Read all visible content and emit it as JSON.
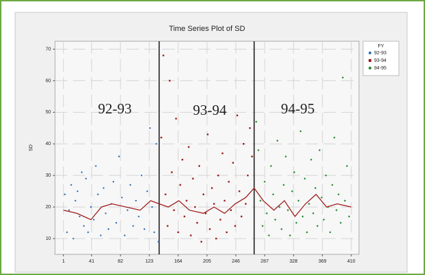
{
  "chart_data": {
    "type": "scatter",
    "title": "Time Series Plot of SD",
    "y_label": "SD",
    "xlim": [
      -11,
      421
    ],
    "ylim": [
      5,
      72.5
    ],
    "xticks": [
      1,
      41,
      82,
      123,
      164,
      205,
      246,
      287,
      328,
      369,
      410
    ],
    "yticks": [
      10,
      20,
      30,
      40,
      50,
      60,
      70
    ],
    "grid": true,
    "legend_title": "FY",
    "legend": "upper right",
    "annotations": [
      "92-93",
      "93-94",
      "94-95"
    ],
    "vlines": [
      137,
      272
    ],
    "series": [
      {
        "name": "92-93",
        "color": "#2f6fb5",
        "marker": "circle",
        "x": [
          3,
          6,
          9,
          12,
          15,
          18,
          21,
          24,
          27,
          30,
          33,
          36,
          40,
          44,
          47,
          50,
          54,
          58,
          61,
          65,
          69,
          72,
          76,
          80,
          84,
          88,
          92,
          96,
          100,
          104,
          108,
          112,
          116,
          120,
          124,
          127,
          130,
          133,
          136
        ],
        "values": [
          24,
          12,
          19,
          27,
          10,
          22,
          25,
          17,
          31,
          14,
          29,
          12,
          20,
          16,
          33,
          24,
          11,
          26,
          18,
          13,
          21,
          28,
          15,
          36,
          23,
          11,
          19,
          27,
          14,
          22,
          17,
          30,
          13,
          25,
          45,
          20,
          12,
          40,
          9
        ]
      },
      {
        "name": "93-94",
        "color": "#a01c1c",
        "marker": "square",
        "x": [
          140,
          143,
          146,
          149,
          152,
          155,
          158,
          161,
          164,
          167,
          170,
          173,
          176,
          179,
          182,
          185,
          188,
          191,
          194,
          197,
          200,
          203,
          206,
          209,
          212,
          215,
          218,
          221,
          224,
          227,
          230,
          233,
          236,
          239,
          242,
          245,
          248,
          251,
          254,
          257,
          260,
          263,
          266,
          269
        ],
        "values": [
          42,
          68,
          24,
          14,
          60,
          31,
          19,
          48,
          12,
          27,
          35,
          17,
          22,
          39,
          11,
          29,
          20,
          15,
          33,
          9,
          24,
          18,
          43,
          13,
          26,
          21,
          10,
          30,
          16,
          37,
          22,
          12,
          28,
          19,
          34,
          14,
          49,
          25,
          17,
          40,
          21,
          30,
          45,
          36
        ]
      },
      {
        "name": "94-95",
        "color": "#1f8a2e",
        "marker": "diamond",
        "x": [
          275,
          278,
          281,
          284,
          287,
          290,
          293,
          296,
          299,
          302,
          305,
          308,
          311,
          314,
          317,
          320,
          323,
          326,
          329,
          332,
          335,
          338,
          341,
          344,
          347,
          350,
          353,
          356,
          359,
          362,
          365,
          368,
          371,
          374,
          377,
          380,
          383,
          386,
          389,
          392,
          395,
          398,
          401,
          404,
          407
        ],
        "values": [
          47,
          38,
          22,
          14,
          28,
          18,
          11,
          33,
          24,
          16,
          41,
          20,
          13,
          27,
          36,
          19,
          11,
          25,
          31,
          15,
          22,
          44,
          17,
          29,
          12,
          21,
          35,
          18,
          26,
          14,
          38,
          23,
          16,
          30,
          20,
          12,
          27,
          42,
          19,
          24,
          15,
          61,
          22,
          33,
          17
        ]
      }
    ],
    "trend": {
      "color": "#a01c1c",
      "x": [
        1,
        20,
        40,
        55,
        70,
        90,
        110,
        125,
        137,
        150,
        165,
        180,
        200,
        215,
        230,
        245,
        260,
        272,
        285,
        300,
        315,
        330,
        345,
        360,
        375,
        390,
        410
      ],
      "values": [
        19,
        18,
        16,
        20,
        21,
        20,
        19,
        22,
        21,
        20,
        22,
        19,
        18,
        20,
        18,
        21,
        23,
        26,
        22,
        19,
        22,
        17,
        21,
        24,
        20,
        21,
        20
      ]
    }
  }
}
